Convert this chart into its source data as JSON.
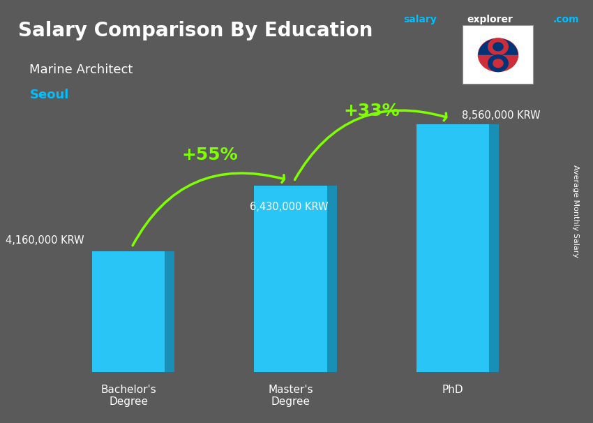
{
  "title_main": "Salary Comparison By Education",
  "title_sub": "Marine Architect",
  "title_city": "Seoul",
  "site_text": "salaryexplorer.com",
  "site_salary": "salary",
  "site_explorer": "explorer",
  "ylabel_text": "Average Monthly Salary",
  "categories": [
    "Bachelor's\nDegree",
    "Master's\nDegree",
    "PhD"
  ],
  "values": [
    4160000,
    6430000,
    8560000
  ],
  "value_labels": [
    "4,160,000 KRW",
    "6,430,000 KRW",
    "8,560,000 KRW"
  ],
  "bar_color": "#00BFFF",
  "bar_color_top": "#00D8FF",
  "bar_color_shadow": "#0080AA",
  "increase_1": "+55%",
  "increase_2": "+33%",
  "increase_color": "#7FFF00",
  "background_color": "#555555",
  "text_color_white": "#FFFFFF",
  "text_color_city": "#00BFFF",
  "arrow_color": "#7FFF00",
  "ylim": [
    0,
    10500000
  ],
  "bar_width": 0.45
}
